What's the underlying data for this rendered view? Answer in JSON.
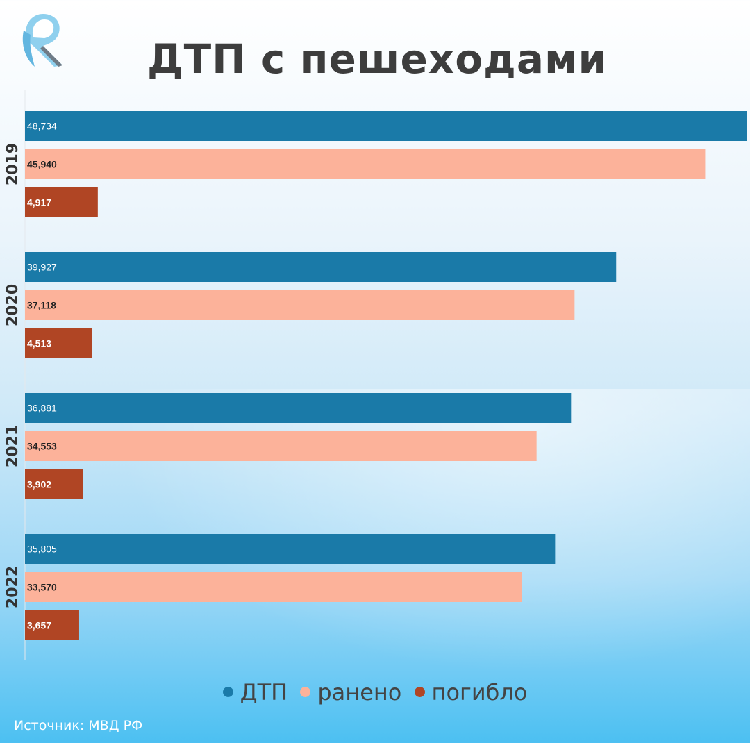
{
  "title": "ДТП с пешеходами",
  "source": "Источник: МВД РФ",
  "colors": {
    "dtp": "#1a7aa8",
    "injured": "#fcb29a",
    "killed": "#b04524",
    "title": "#3d3d3d"
  },
  "legend": [
    {
      "label": "ДТП",
      "color": "#1a7aa8"
    },
    {
      "label": "ранено",
      "color": "#fcb29a"
    },
    {
      "label": "погибло",
      "color": "#b04524"
    }
  ],
  "chart_data": {
    "type": "bar",
    "orientation": "horizontal",
    "title": "ДТП с пешеходами",
    "categories": [
      "2019",
      "2020",
      "2021",
      "2022"
    ],
    "series": [
      {
        "name": "ДТП",
        "color": "#1a7aa8",
        "values": [
          48734,
          39927,
          36881,
          35805
        ],
        "labels": [
          "48,734",
          "39,927",
          "36,881",
          "35,805"
        ]
      },
      {
        "name": "ранено",
        "color": "#fcb29a",
        "values": [
          45940,
          37118,
          34553,
          33570
        ],
        "labels": [
          "45,940",
          "37,118",
          "34,553",
          "33,570"
        ]
      },
      {
        "name": "погибло",
        "color": "#b04524",
        "values": [
          4917,
          4513,
          3902,
          3657
        ],
        "labels": [
          "4,917",
          "4,513",
          "3,902",
          "3,657"
        ]
      }
    ],
    "xlim": [
      0,
      48734
    ],
    "grid": false,
    "legend_position": "bottom"
  }
}
